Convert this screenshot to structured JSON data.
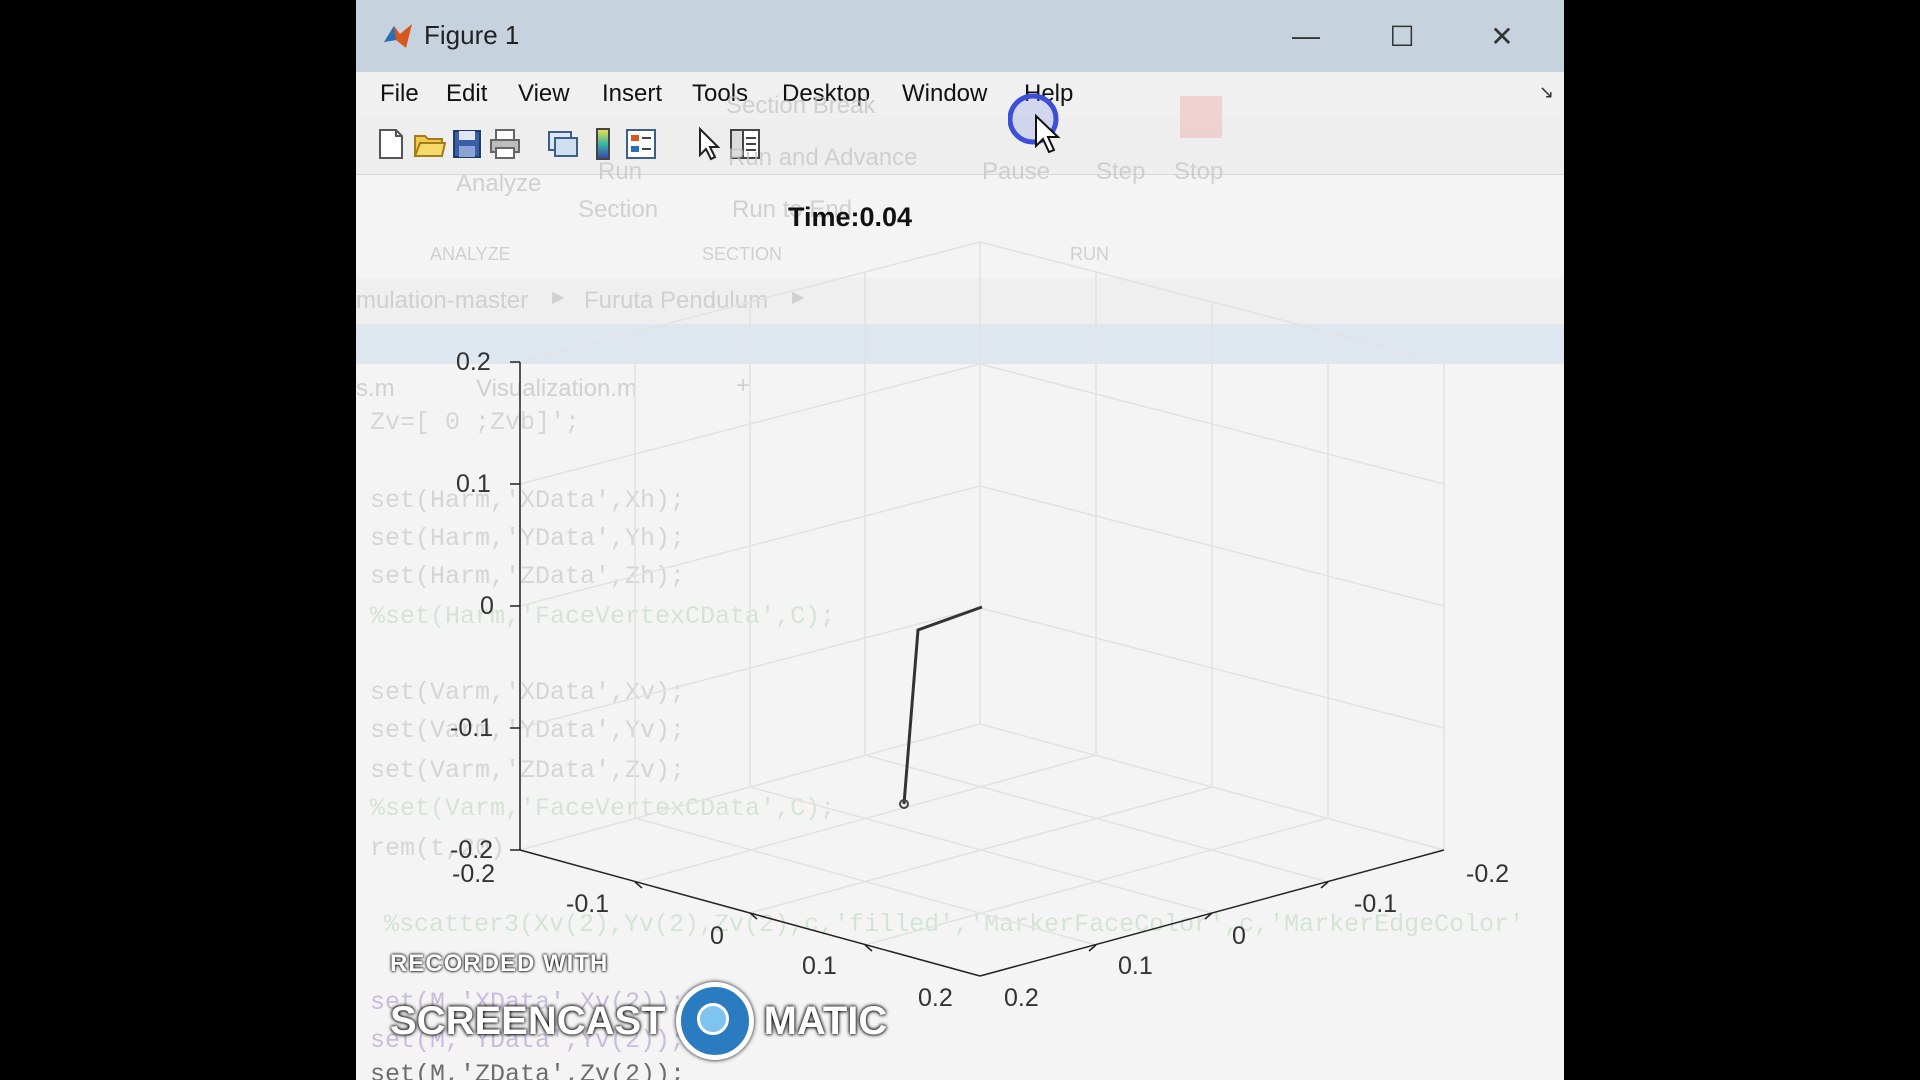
{
  "window": {
    "title": "Figure 1",
    "min_glyph": "—",
    "max_glyph": "☐",
    "close_glyph": "✕"
  },
  "menu": [
    "File",
    "Edit",
    "View",
    "Insert",
    "Tools",
    "Desktop",
    "Window",
    "Help"
  ],
  "toolbar": {
    "icons": [
      "new-figure-icon",
      "open-file-icon",
      "save-icon",
      "print-icon",
      "link-plot-icon",
      "colorbar-icon",
      "legend-icon",
      "pointer-icon",
      "property-editor-icon"
    ]
  },
  "plot": {
    "time_label": "Time:0.04",
    "z_ticks": [
      "0.2",
      "0.1",
      "0",
      "-0.1",
      "-0.2"
    ],
    "x_ticks": [
      "-0.2",
      "-0.1",
      "0",
      "0.1",
      "0.2"
    ],
    "y_ticks": [
      "-0.2",
      "-0.1",
      "0",
      "0.1",
      "0.2"
    ]
  },
  "ghost_ui": {
    "section_break": "Section Break",
    "run_advance": "Run and Advance",
    "run_to_end": "Run to End",
    "run": "Run",
    "section": "Section",
    "analyze": "Analyze",
    "pause": "Pause",
    "step": "Step",
    "stop": "Stop",
    "analyze_group": "ANALYZE",
    "section_group": "SECTION",
    "run_group": "RUN",
    "breadcrumb_1": "mulation-master",
    "breadcrumb_2": "Furuta Pendulum",
    "tab_1": "s.m",
    "tab_2": "Visualization.m"
  },
  "ghost_code": [
    "Zv=[ 0   ;Zvb]';",
    "set(Harm,'XData',Xh);",
    "set(Harm,'YData',Yh);",
    "set(Harm,'ZData',Zh);",
    "%set(Harm,'FaceVertexCData',C);",
    "set(Varm,'XData',Xv);",
    "set(Varm,'YData',Yv);",
    "set(Varm,'ZData',Zv);",
    "%set(Varm,'FaceVertexCData',C);",
    "rem(t,20)",
    "%scatter3(Xv(2),Yv(2),Zv(2),c,'filled','MarkerFaceColor',c,'MarkerEdgeColor'",
    "set(M,'XData',Xv(2));",
    "set(M,'YData',Yv(2));",
    "set(M,'ZData',Zv(2));"
  ],
  "watermark": {
    "line1": "RECORDED WITH",
    "left": "SCREENCAST",
    "right": "MATIC"
  }
}
